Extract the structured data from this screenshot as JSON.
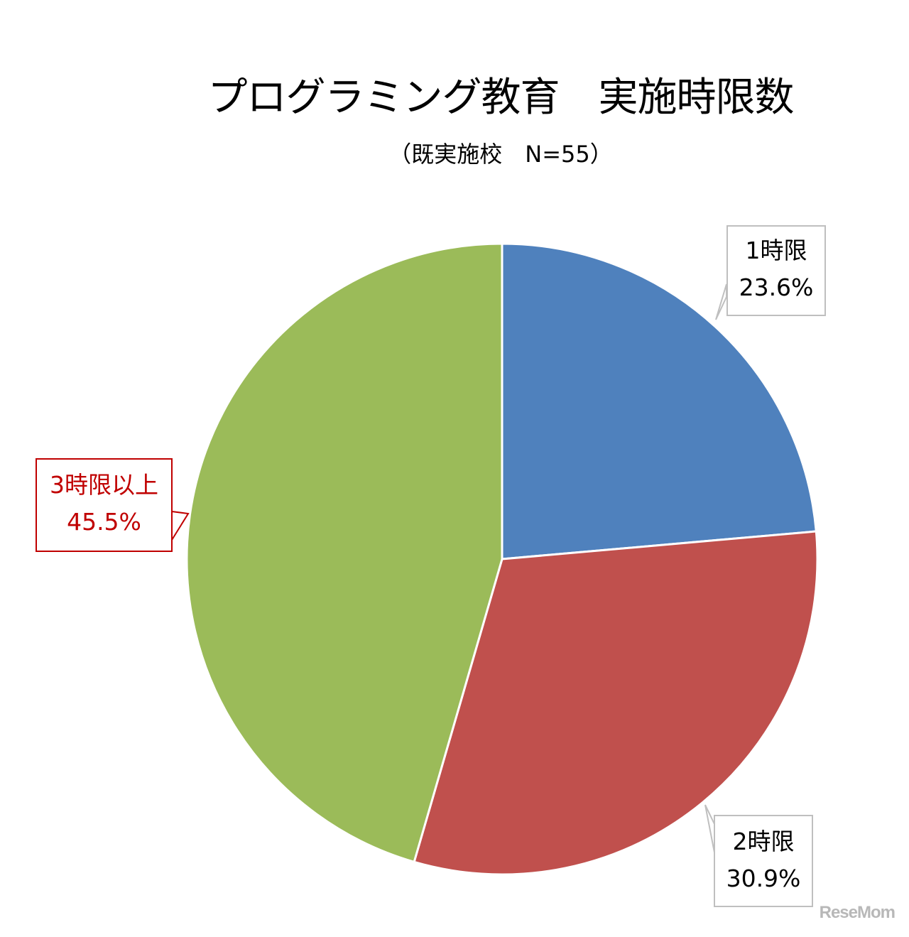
{
  "chart_data": {
    "type": "pie",
    "title": "プログラミング教育　実施時限数",
    "subtitle": "（既実施校　N=55）",
    "categories": [
      "1時限",
      "2時限",
      "3時限以上"
    ],
    "values": [
      23.6,
      30.9,
      45.5
    ],
    "value_labels": [
      "23.6%",
      "30.9%",
      "45.5%"
    ],
    "colors": [
      "#4F81BD",
      "#C0504D",
      "#9BBB59"
    ],
    "start_angle_deg": 0,
    "direction": "clockwise",
    "legend": "none",
    "data_labels": "callouts"
  },
  "labels": [
    {
      "name": "1時限",
      "value": "23.6%",
      "color": "#000000",
      "border": "#bfbfbf"
    },
    {
      "name": "2時限",
      "value": "30.9%",
      "color": "#000000",
      "border": "#bfbfbf"
    },
    {
      "name": "3時限以上",
      "value": "45.5%",
      "color": "#c00000",
      "border": "#c00000"
    }
  ],
  "watermark": "ReseMom"
}
